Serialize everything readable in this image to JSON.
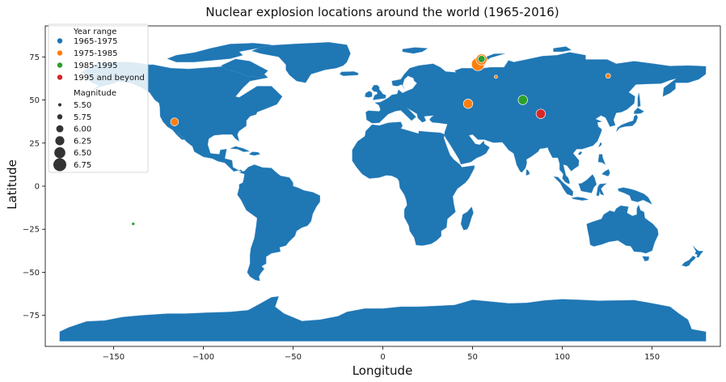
{
  "chart_data": {
    "type": "scatter",
    "title": "Nuclear explosion locations around the world (1965-2016)",
    "xlabel": "Longitude",
    "ylabel": "Latitude",
    "xlim": [
      -188,
      188
    ],
    "ylim": [
      -93,
      93
    ],
    "xticks": [
      -150,
      -100,
      -50,
      0,
      50,
      100,
      150
    ],
    "yticks": [
      75,
      50,
      25,
      0,
      -25,
      -50,
      -75
    ],
    "tick_labels_x": [
      "−150",
      "−100",
      "−50",
      "0",
      "50",
      "100",
      "150"
    ],
    "tick_labels_y": [
      "75",
      "50",
      "25",
      "0",
      "−25",
      "−50",
      "−75"
    ],
    "grid": false,
    "land_color": "#1f77b4",
    "legend": {
      "placement": "top-left",
      "hue_title": "Year range",
      "hue_entries": [
        {
          "label": "1965-1975",
          "color": "#1f77b4"
        },
        {
          "label": "1975-1985",
          "color": "#ff7f0e"
        },
        {
          "label": "1985-1995",
          "color": "#2ca02c"
        },
        {
          "label": "1995 and beyond",
          "color": "#d62728"
        }
      ],
      "size_title": "Magnitude",
      "size_entries": [
        "5.50",
        "5.75",
        "6.00",
        "6.25",
        "6.50",
        "6.75"
      ]
    },
    "series": [
      {
        "name": "1965-1975",
        "points": [
          {
            "lon": -116,
            "lat": 37.1,
            "mag": 5.6
          },
          {
            "lon": 78,
            "lat": 50,
            "mag": 5.9
          },
          {
            "lon": 54,
            "lat": 73.4,
            "mag": 6.0
          },
          {
            "lon": 88,
            "lat": 41.6,
            "mag": 5.6
          }
        ]
      },
      {
        "name": "1975-1985",
        "points": [
          {
            "lon": 53,
            "lat": 70.8,
            "mag": 6.75
          },
          {
            "lon": 55,
            "lat": 73.5,
            "mag": 6.5
          },
          {
            "lon": 47.5,
            "lat": 47.8,
            "mag": 6.3
          },
          {
            "lon": -116,
            "lat": 37.3,
            "mag": 6.1
          },
          {
            "lon": 63,
            "lat": 63.5,
            "mag": 5.5
          },
          {
            "lon": 125.5,
            "lat": 64,
            "mag": 5.7
          },
          {
            "lon": 88,
            "lat": 42,
            "mag": 6.0
          }
        ]
      },
      {
        "name": "1985-1995",
        "points": [
          {
            "lon": 55,
            "lat": 73.8,
            "mag": 6.0
          },
          {
            "lon": 78,
            "lat": 50,
            "mag": 6.3
          },
          {
            "lon": -139,
            "lat": -21.9,
            "mag": 5.5
          }
        ]
      },
      {
        "name": "1995 and beyond",
        "points": [
          {
            "lon": 88,
            "lat": 42,
            "mag": 6.3
          }
        ]
      }
    ]
  }
}
